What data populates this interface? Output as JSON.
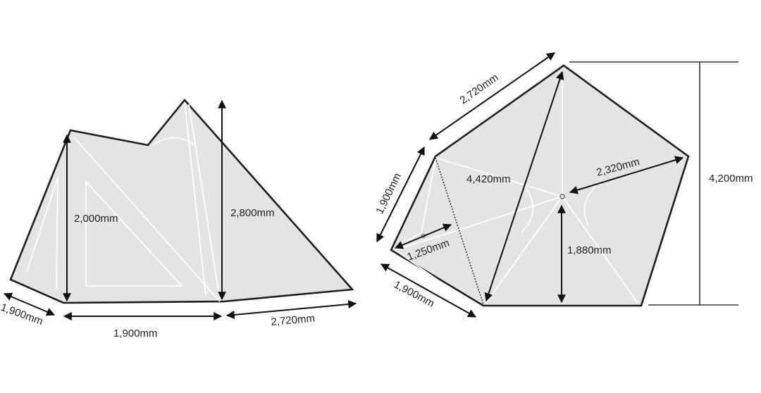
{
  "side_view": {
    "labels": {
      "front_height": "2,000mm",
      "peak_height": "2,800mm",
      "base_length": "1,900mm",
      "rear_length": "2,720mm",
      "side_width": "1,900mm"
    }
  },
  "top_view": {
    "labels": {
      "top_edge": "2,720mm",
      "left_edge": "1,900mm",
      "diagonal": "4,420mm",
      "radius": "2,320mm",
      "vestibule_depth": "1,250mm",
      "center_to_base": "1,880mm",
      "bottom_left_edge": "1,900mm",
      "total_depth": "4,200mm"
    }
  },
  "colors": {
    "fill": "#e4e4e2",
    "outline": "#1e1e1e",
    "seams": "#ffffff"
  }
}
